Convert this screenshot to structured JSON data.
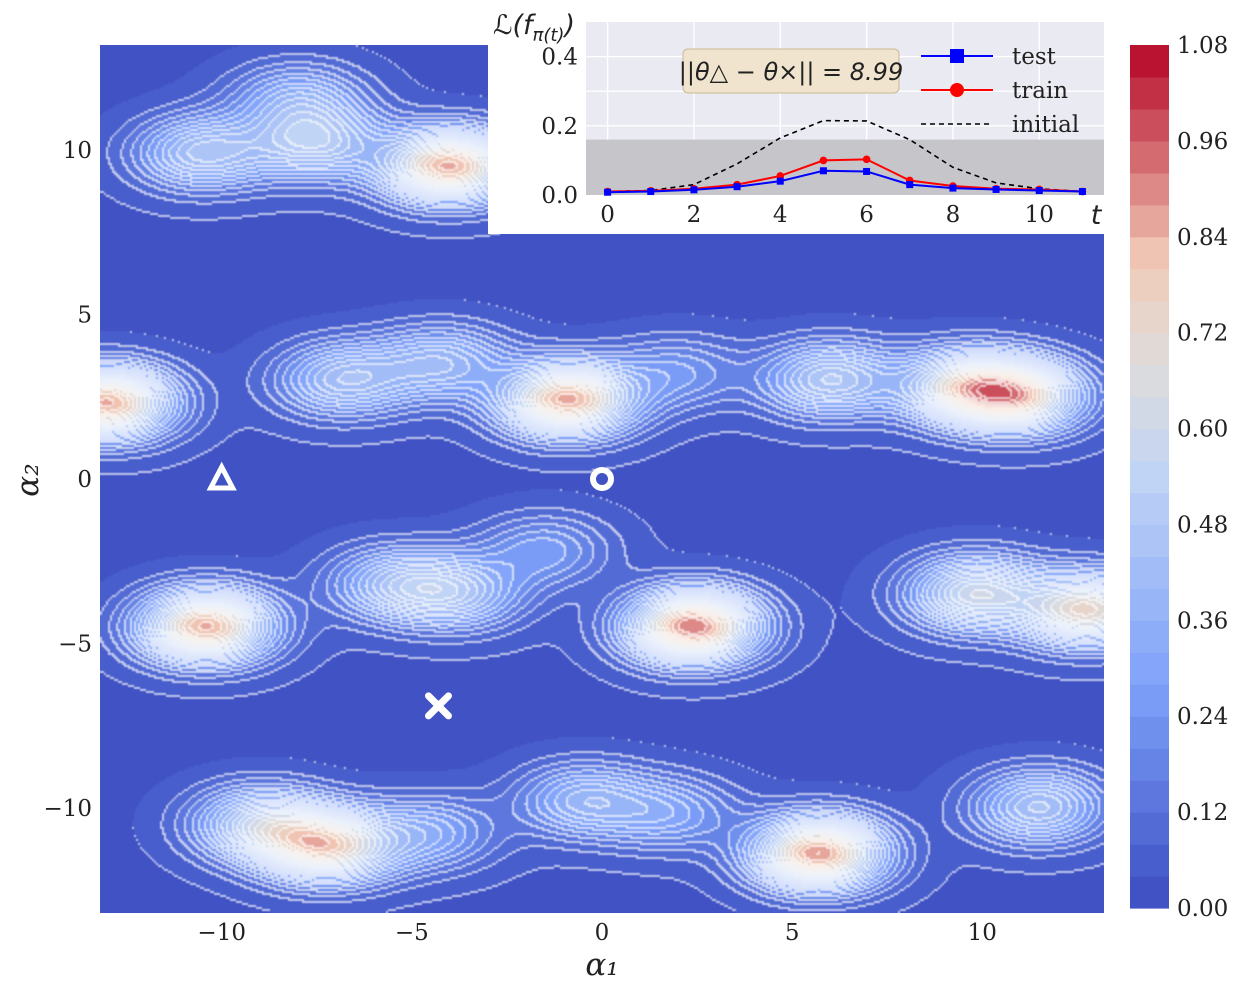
{
  "chart_data": [
    {
      "type": "heatmap",
      "subtype": "filled-contour",
      "xlabel": "α₁",
      "ylabel": "α₂",
      "xlim": [
        -13.2,
        13.2
      ],
      "ylim": [
        -13.2,
        13.2
      ],
      "xticks": [
        -10,
        -5,
        0,
        5,
        10
      ],
      "xtick_labels": [
        "−10",
        "−5",
        "0",
        "5",
        "10"
      ],
      "yticks": [
        -10,
        -5,
        0,
        5,
        10
      ],
      "ytick_labels": [
        "−10",
        "−5",
        "0",
        "5",
        "10"
      ],
      "colormap": "coolwarm",
      "colorbar": {
        "min": 0.0,
        "max": 1.08,
        "ticks": [
          0.0,
          0.12,
          0.24,
          0.36,
          0.48,
          0.6,
          0.72,
          0.84,
          0.96,
          1.08
        ],
        "tick_labels": [
          "0.00",
          "0.12",
          "0.24",
          "0.36",
          "0.48",
          "0.60",
          "0.72",
          "0.84",
          "0.96",
          "1.08"
        ]
      },
      "peaks": [
        {
          "x": -10.5,
          "y": 9.9,
          "v": 0.45
        },
        {
          "x": -8.0,
          "y": 11.5,
          "v": 0.32
        },
        {
          "x": -7.5,
          "y": 10.2,
          "v": 0.46
        },
        {
          "x": -4.0,
          "y": 9.5,
          "v": 0.85
        },
        {
          "x": -13.0,
          "y": 2.3,
          "v": 0.85
        },
        {
          "x": -6.8,
          "y": 3.0,
          "v": 0.42
        },
        {
          "x": -4.2,
          "y": 3.5,
          "v": 0.38
        },
        {
          "x": -0.9,
          "y": 2.4,
          "v": 0.85
        },
        {
          "x": 2.0,
          "y": 3.2,
          "v": 0.24
        },
        {
          "x": 6.0,
          "y": 3.0,
          "v": 0.48
        },
        {
          "x": 9.5,
          "y": 2.8,
          "v": 0.58
        },
        {
          "x": 11.0,
          "y": 2.5,
          "v": 0.68
        },
        {
          "x": -10.4,
          "y": -4.5,
          "v": 0.85
        },
        {
          "x": -5.5,
          "y": -3.2,
          "v": 0.36
        },
        {
          "x": -3.8,
          "y": -3.5,
          "v": 0.4
        },
        {
          "x": -1.5,
          "y": -2.2,
          "v": 0.26
        },
        {
          "x": 2.4,
          "y": -4.5,
          "v": 0.92
        },
        {
          "x": 9.8,
          "y": -3.5,
          "v": 0.58
        },
        {
          "x": 12.8,
          "y": -4.0,
          "v": 0.72
        },
        {
          "x": -9.0,
          "y": -10.5,
          "v": 0.5
        },
        {
          "x": -7.2,
          "y": -11.2,
          "v": 0.72
        },
        {
          "x": -4.5,
          "y": -10.8,
          "v": 0.3
        },
        {
          "x": -0.5,
          "y": -9.8,
          "v": 0.36
        },
        {
          "x": 1.8,
          "y": -10.2,
          "v": 0.28
        },
        {
          "x": 5.7,
          "y": -11.4,
          "v": 0.88
        },
        {
          "x": 11.5,
          "y": -10.0,
          "v": 0.45
        }
      ],
      "markers": [
        {
          "shape": "triangle",
          "x": -10.0,
          "y": 0.0
        },
        {
          "shape": "circle",
          "x": 0.0,
          "y": 0.0
        },
        {
          "shape": "cross",
          "x": -4.3,
          "y": -6.9
        }
      ]
    },
    {
      "type": "line",
      "ylabel": "ℒ(f",
      "ylabel_sub": "π(t)",
      "ylabel_close": ")",
      "xlabel": "t",
      "xlim": [
        -0.5,
        11.5
      ],
      "ylim": [
        0,
        0.5
      ],
      "xticks": [
        0,
        2,
        4,
        6,
        8,
        10
      ],
      "yticks": [
        0.0,
        0.2,
        0.4
      ],
      "ytick_labels": [
        "0.0",
        "0.2",
        "0.4"
      ],
      "grid": true,
      "legend_position": "top-right",
      "shaded_band": [
        0,
        0.16
      ],
      "annotation": "||θ△ − θ×|| = 8.99",
      "x": [
        0,
        1,
        2,
        3,
        4,
        5,
        6,
        7,
        8,
        9,
        10,
        11
      ],
      "series": [
        {
          "name": "test",
          "color": "#0000ff",
          "marker": "square",
          "values": [
            0.008,
            0.01,
            0.015,
            0.024,
            0.04,
            0.07,
            0.068,
            0.03,
            0.02,
            0.016,
            0.013,
            0.01
          ]
        },
        {
          "name": "train",
          "color": "#ff0000",
          "marker": "circle",
          "values": [
            0.01,
            0.012,
            0.018,
            0.03,
            0.055,
            0.1,
            0.103,
            0.042,
            0.026,
            0.018,
            0.016,
            0.01
          ]
        },
        {
          "name": "initial",
          "color": "#000000",
          "dash": true,
          "values": [
            0.01,
            0.013,
            0.03,
            0.09,
            0.165,
            0.215,
            0.214,
            0.16,
            0.08,
            0.035,
            0.018,
            0.01
          ]
        }
      ]
    }
  ]
}
